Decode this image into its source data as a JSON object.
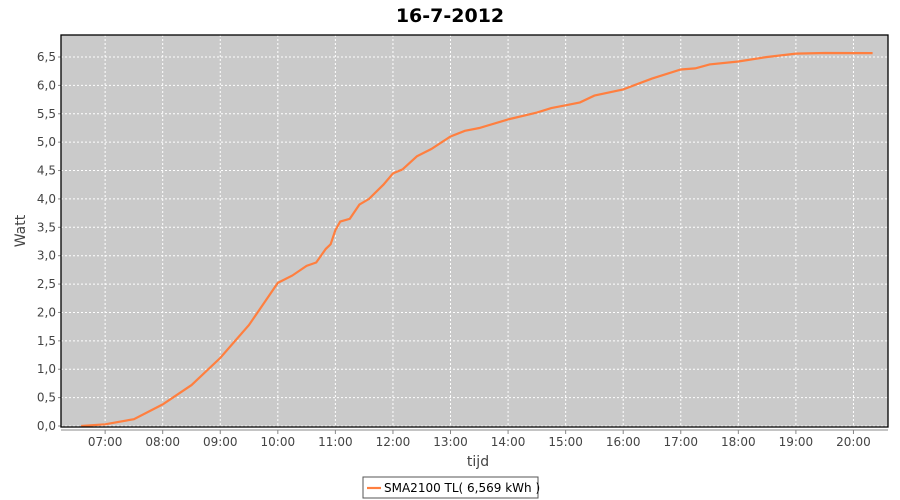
{
  "chart_data": {
    "type": "line",
    "title": "16-7-2012",
    "xlabel": "tijd",
    "ylabel": "Watt",
    "xlim": [
      "06:14",
      "20:36"
    ],
    "ylim": [
      0,
      6.85
    ],
    "x_ticks": [
      "07:00",
      "08:00",
      "09:00",
      "10:00",
      "11:00",
      "12:00",
      "13:00",
      "14:00",
      "15:00",
      "16:00",
      "17:00",
      "18:00",
      "19:00",
      "20:00"
    ],
    "y_ticks": [
      "0,0",
      "0,5",
      "1,0",
      "1,5",
      "2,0",
      "2,5",
      "3,0",
      "3,5",
      "4,0",
      "4,5",
      "5,0",
      "5,5",
      "6,0",
      "6,5"
    ],
    "grid": true,
    "legend_placement": "bottom",
    "background_color": "#cacaca",
    "series": [
      {
        "name": "SMA2100 TL( 6,569 kWh )",
        "color": "#ff7f3f",
        "x": [
          "06:35",
          "07:00",
          "07:30",
          "08:00",
          "08:30",
          "09:00",
          "09:30",
          "10:00",
          "10:15",
          "10:30",
          "10:40",
          "10:50",
          "10:55",
          "11:00",
          "11:05",
          "11:15",
          "11:25",
          "11:35",
          "11:50",
          "12:00",
          "12:10",
          "12:25",
          "12:40",
          "13:00",
          "13:15",
          "13:30",
          "14:00",
          "14:30",
          "14:45",
          "15:00",
          "15:15",
          "15:30",
          "16:00",
          "16:30",
          "17:00",
          "17:15",
          "17:30",
          "18:00",
          "18:30",
          "19:00",
          "19:30",
          "20:20"
        ],
        "y": [
          0,
          0.03,
          0.12,
          0.38,
          0.72,
          1.2,
          1.78,
          2.52,
          2.65,
          2.82,
          2.88,
          3.12,
          3.2,
          3.45,
          3.6,
          3.65,
          3.9,
          4.0,
          4.25,
          4.45,
          4.52,
          4.75,
          4.88,
          5.1,
          5.2,
          5.25,
          5.4,
          5.52,
          5.6,
          5.65,
          5.7,
          5.82,
          5.93,
          6.12,
          6.28,
          6.3,
          6.37,
          6.42,
          6.5,
          6.56,
          6.57,
          6.569
        ]
      }
    ]
  }
}
